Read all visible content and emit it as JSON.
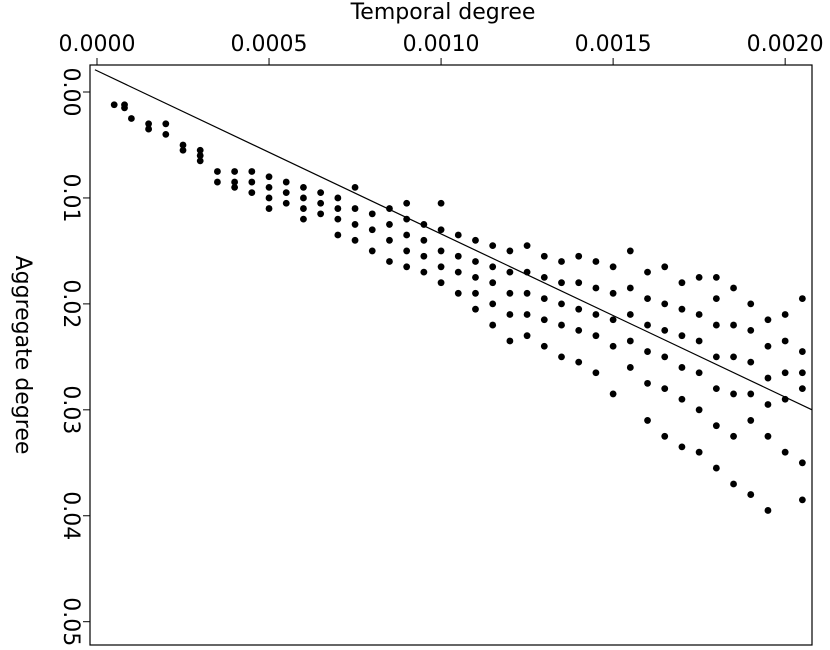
{
  "chart_data": {
    "type": "scatter",
    "x_label": "Temporal degree",
    "y_label": "Aggregate degree",
    "x_axis_position": "top",
    "y_inverted": true,
    "xlim": [
      -2.03e-05,
      0.002078
    ],
    "ylim": [
      -0.00255,
      0.0522
    ],
    "xticks": [
      {
        "value": 0,
        "label": "0.0000"
      },
      {
        "value": 0.0005,
        "label": "0.0005"
      },
      {
        "value": 0.001,
        "label": "0.0010"
      },
      {
        "value": 0.0015,
        "label": "0.0015"
      },
      {
        "value": 0.002,
        "label": "0.0020"
      }
    ],
    "yticks": [
      {
        "value": 0,
        "label": "0.00"
      },
      0.01,
      0.02,
      0.03,
      0.04,
      0.05
    ],
    "fit_line": {
      "x": [
        -6e-06,
        0.002078
      ],
      "y": [
        -0.0021,
        0.03
      ]
    },
    "series": [
      {
        "color": "#000000",
        "x": [
          5e-05,
          8e-05,
          8e-05,
          0.0001,
          0.00015,
          0.00015,
          0.0002,
          0.0002,
          0.00025,
          0.00025,
          0.0003,
          0.0003,
          0.0003,
          0.00035,
          0.00035,
          0.0004,
          0.0004,
          0.0004,
          0.00045,
          0.00045,
          0.00045,
          0.0005,
          0.0005,
          0.0005,
          0.0005,
          0.00055,
          0.00055,
          0.00055,
          0.0006,
          0.0006,
          0.0006,
          0.0006,
          0.00065,
          0.00065,
          0.00065,
          0.0007,
          0.0007,
          0.0007,
          0.0007,
          0.00075,
          0.00075,
          0.00075,
          0.00075,
          0.0008,
          0.0008,
          0.0008,
          0.00085,
          0.00085,
          0.00085,
          0.00085,
          0.0009,
          0.0009,
          0.0009,
          0.0009,
          0.0009,
          0.00095,
          0.00095,
          0.00095,
          0.00095,
          0.001,
          0.001,
          0.001,
          0.001,
          0.001,
          0.00105,
          0.00105,
          0.00105,
          0.00105,
          0.0011,
          0.0011,
          0.0011,
          0.0011,
          0.0011,
          0.00115,
          0.00115,
          0.00115,
          0.00115,
          0.00115,
          0.0012,
          0.0012,
          0.0012,
          0.0012,
          0.0012,
          0.00125,
          0.00125,
          0.00125,
          0.00125,
          0.00125,
          0.0013,
          0.0013,
          0.0013,
          0.0013,
          0.0013,
          0.00135,
          0.00135,
          0.00135,
          0.00135,
          0.00135,
          0.0014,
          0.0014,
          0.0014,
          0.0014,
          0.0014,
          0.00145,
          0.00145,
          0.00145,
          0.00145,
          0.00145,
          0.0015,
          0.0015,
          0.0015,
          0.0015,
          0.0015,
          0.00155,
          0.00155,
          0.00155,
          0.00155,
          0.00155,
          0.0016,
          0.0016,
          0.0016,
          0.0016,
          0.0016,
          0.0016,
          0.00165,
          0.00165,
          0.00165,
          0.00165,
          0.00165,
          0.00165,
          0.0017,
          0.0017,
          0.0017,
          0.0017,
          0.0017,
          0.0017,
          0.00175,
          0.00175,
          0.00175,
          0.00175,
          0.00175,
          0.00175,
          0.0018,
          0.0018,
          0.0018,
          0.0018,
          0.0018,
          0.0018,
          0.0018,
          0.00185,
          0.00185,
          0.00185,
          0.00185,
          0.00185,
          0.00185,
          0.0019,
          0.0019,
          0.0019,
          0.0019,
          0.0019,
          0.0019,
          0.00195,
          0.00195,
          0.00195,
          0.00195,
          0.00195,
          0.00195,
          0.002,
          0.002,
          0.002,
          0.002,
          0.002,
          0.00205,
          0.00205,
          0.00205,
          0.00205,
          0.00205,
          0.00205
        ],
        "values": [
          0.0012,
          0.0015,
          0.0012,
          0.0025,
          0.003,
          0.0035,
          0.004,
          0.003,
          0.005,
          0.0055,
          0.006,
          0.0065,
          0.0055,
          0.0075,
          0.0085,
          0.0085,
          0.0075,
          0.009,
          0.0075,
          0.0085,
          0.0095,
          0.008,
          0.009,
          0.01,
          0.011,
          0.0085,
          0.0095,
          0.0105,
          0.009,
          0.01,
          0.011,
          0.012,
          0.0095,
          0.0105,
          0.0115,
          0.01,
          0.011,
          0.012,
          0.0135,
          0.009,
          0.011,
          0.0125,
          0.014,
          0.0115,
          0.013,
          0.015,
          0.011,
          0.0125,
          0.014,
          0.016,
          0.0105,
          0.012,
          0.0135,
          0.015,
          0.0165,
          0.0125,
          0.014,
          0.0155,
          0.017,
          0.0105,
          0.013,
          0.015,
          0.0165,
          0.018,
          0.0135,
          0.0155,
          0.017,
          0.019,
          0.014,
          0.016,
          0.0175,
          0.019,
          0.0205,
          0.0145,
          0.0165,
          0.018,
          0.02,
          0.022,
          0.015,
          0.017,
          0.019,
          0.021,
          0.0235,
          0.0145,
          0.017,
          0.019,
          0.021,
          0.023,
          0.0155,
          0.0175,
          0.0195,
          0.0215,
          0.024,
          0.016,
          0.018,
          0.02,
          0.022,
          0.025,
          0.0155,
          0.018,
          0.0205,
          0.0225,
          0.0255,
          0.016,
          0.0185,
          0.021,
          0.023,
          0.0265,
          0.0165,
          0.019,
          0.0215,
          0.024,
          0.0285,
          0.015,
          0.0185,
          0.021,
          0.0235,
          0.026,
          0.017,
          0.0195,
          0.022,
          0.0245,
          0.0275,
          0.031,
          0.0165,
          0.02,
          0.0225,
          0.025,
          0.028,
          0.0325,
          0.018,
          0.0205,
          0.023,
          0.026,
          0.029,
          0.0335,
          0.0175,
          0.021,
          0.0235,
          0.0265,
          0.03,
          0.034,
          0.0175,
          0.0195,
          0.022,
          0.025,
          0.028,
          0.0315,
          0.0355,
          0.0185,
          0.022,
          0.025,
          0.0285,
          0.0325,
          0.037,
          0.02,
          0.0225,
          0.0255,
          0.0285,
          0.031,
          0.038,
          0.0215,
          0.024,
          0.027,
          0.0295,
          0.0325,
          0.0395,
          0.021,
          0.0235,
          0.0265,
          0.029,
          0.034,
          0.0195,
          0.0245,
          0.0265,
          0.028,
          0.035,
          0.0385
        ]
      }
    ]
  }
}
